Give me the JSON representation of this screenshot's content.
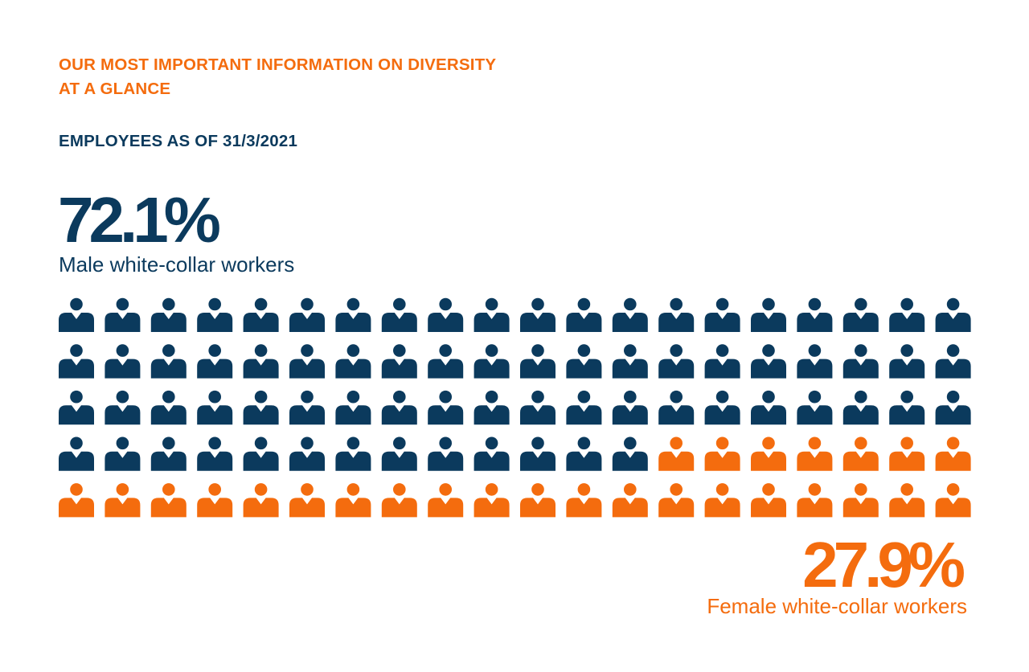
{
  "header": {
    "title": "OUR MOST IMPORTANT INFORMATION ON DIVERSITY AT A GLANCE",
    "subtitle": "EMPLOYEES AS OF 31/3/2021"
  },
  "colors": {
    "male": "#0b3a5d",
    "female": "#f46c0e"
  },
  "chart_data": {
    "type": "pictogram",
    "title": "EMPLOYEES AS OF 31/3/2021",
    "icon": "person-icon",
    "columns": 20,
    "rows": 5,
    "total_icons": 100,
    "series": [
      {
        "name": "Male white-collar workers",
        "percent": 72.1,
        "label": "72.1%",
        "icon_count": 73,
        "color": "#0b3a5d"
      },
      {
        "name": "Female white-collar workers",
        "percent": 27.9,
        "label": "27.9%",
        "icon_count": 27,
        "color": "#f46c0e"
      }
    ]
  }
}
